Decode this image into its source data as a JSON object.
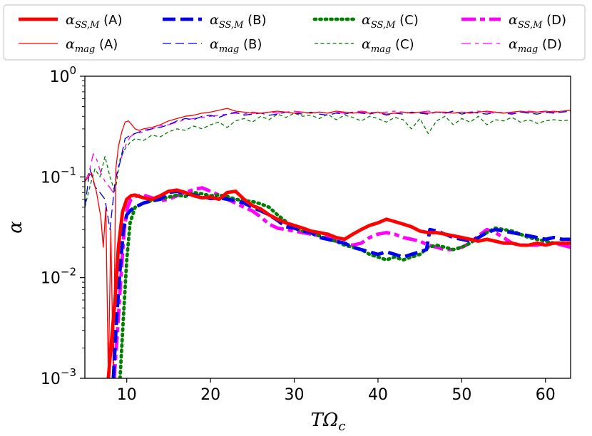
{
  "chart_data": {
    "type": "line",
    "title": "",
    "xlabel": "TΩ_c",
    "ylabel": "α",
    "xlim": [
      5,
      63
    ],
    "ylim": [
      0.001,
      1
    ],
    "yscale": "log",
    "xticks": [
      10,
      20,
      30,
      40,
      50,
      60
    ],
    "yticks": [
      {
        "value": 0.001,
        "base": "10",
        "exp": "−3"
      },
      {
        "value": 0.01,
        "base": "10",
        "exp": "−2"
      },
      {
        "value": 0.1,
        "base": "10",
        "exp": "−1"
      },
      {
        "value": 1,
        "base": "10",
        "exp": "0"
      }
    ],
    "legend": {
      "placement": "top",
      "columns": 4
    },
    "series": [
      {
        "name": "α_SS,M (A)",
        "sub": "SS,M",
        "tag": "(A)",
        "color": "#ff0000",
        "style": "solid",
        "weight": "thick",
        "x": [
          7.8,
          8.2,
          8.6,
          9.0,
          9.5,
          10.0,
          10.5,
          11,
          12,
          13,
          14,
          15,
          16,
          17,
          18,
          19,
          20,
          21,
          22,
          23,
          24,
          25,
          26,
          27,
          28,
          29,
          30,
          31,
          32,
          33,
          34,
          35,
          36,
          37,
          38,
          39,
          40,
          41,
          42,
          43,
          44,
          45,
          46,
          47,
          48,
          49,
          50,
          51,
          52,
          53,
          54,
          55,
          56,
          57,
          58,
          59,
          60,
          61,
          62,
          63
        ],
        "y": [
          0.001,
          0.0025,
          0.006,
          0.02,
          0.045,
          0.06,
          0.065,
          0.066,
          0.062,
          0.06,
          0.065,
          0.072,
          0.074,
          0.07,
          0.065,
          0.062,
          0.063,
          0.06,
          0.07,
          0.072,
          0.06,
          0.052,
          0.048,
          0.042,
          0.038,
          0.035,
          0.033,
          0.031,
          0.029,
          0.028,
          0.027,
          0.025,
          0.024,
          0.027,
          0.03,
          0.033,
          0.035,
          0.038,
          0.036,
          0.034,
          0.032,
          0.029,
          0.028,
          0.028,
          0.027,
          0.026,
          0.025,
          0.024,
          0.023,
          0.024,
          0.023,
          0.022,
          0.022,
          0.021,
          0.021,
          0.022,
          0.021,
          0.022,
          0.022,
          0.022
        ]
      },
      {
        "name": "α_SS,M (B)",
        "sub": "SS,M",
        "tag": "(B)",
        "color": "#0000ee",
        "style": "dashed",
        "weight": "thick",
        "x": [
          8.4,
          8.8,
          9.2,
          9.6,
          10.0,
          10.5,
          11,
          12,
          13,
          14,
          15,
          16,
          17,
          18,
          19,
          20,
          21,
          22,
          23,
          24,
          25,
          26,
          27,
          28,
          29,
          30,
          31,
          32,
          33,
          34,
          35,
          36,
          37,
          38,
          39,
          40,
          41,
          42,
          43,
          44,
          45,
          45.8,
          46.2,
          47,
          48,
          49,
          50,
          51,
          52,
          53,
          54,
          55,
          56,
          57,
          58,
          59,
          60,
          61,
          62,
          63
        ],
        "y": [
          0.001,
          0.004,
          0.012,
          0.03,
          0.042,
          0.047,
          0.05,
          0.055,
          0.058,
          0.06,
          0.07,
          0.072,
          0.068,
          0.066,
          0.064,
          0.061,
          0.062,
          0.06,
          0.058,
          0.055,
          0.05,
          0.046,
          0.042,
          0.037,
          0.032,
          0.031,
          0.029,
          0.028,
          0.025,
          0.024,
          0.023,
          0.022,
          0.02,
          0.019,
          0.018,
          0.017,
          0.018,
          0.017,
          0.016,
          0.017,
          0.018,
          0.019,
          0.03,
          0.029,
          0.027,
          0.025,
          0.024,
          0.023,
          0.025,
          0.028,
          0.03,
          0.029,
          0.028,
          0.027,
          0.026,
          0.025,
          0.024,
          0.025,
          0.024,
          0.024
        ]
      },
      {
        "name": "α_SS,M (C)",
        "sub": "SS,M",
        "tag": "(C)",
        "color": "#007f00",
        "style": "dotted",
        "weight": "thick",
        "x": [
          9.2,
          9.6,
          10.0,
          10.4,
          11,
          12,
          13,
          14,
          15,
          16,
          17,
          18,
          19,
          20,
          21,
          22,
          23,
          24,
          25,
          26,
          27,
          28,
          29,
          30,
          31,
          32,
          33,
          34,
          35,
          36,
          37,
          38,
          39,
          40,
          41,
          42,
          43,
          44,
          45,
          46,
          47,
          48,
          49,
          50,
          51,
          52,
          53,
          54,
          55,
          56,
          57,
          58,
          59,
          60,
          61,
          62,
          63
        ],
        "y": [
          0.001,
          0.004,
          0.015,
          0.035,
          0.05,
          0.055,
          0.058,
          0.06,
          0.063,
          0.066,
          0.064,
          0.07,
          0.068,
          0.065,
          0.066,
          0.064,
          0.06,
          0.058,
          0.057,
          0.054,
          0.05,
          0.042,
          0.036,
          0.031,
          0.029,
          0.028,
          0.026,
          0.024,
          0.023,
          0.021,
          0.02,
          0.019,
          0.017,
          0.016,
          0.015,
          0.016,
          0.015,
          0.016,
          0.017,
          0.02,
          0.021,
          0.02,
          0.019,
          0.02,
          0.022,
          0.025,
          0.028,
          0.031,
          0.03,
          0.029,
          0.027,
          0.025,
          0.024,
          0.023,
          0.022,
          0.022,
          0.022
        ]
      },
      {
        "name": "α_SS,M (D)",
        "sub": "SS,M",
        "tag": "(D)",
        "color": "#ff00ff",
        "style": "dashdot",
        "weight": "thick",
        "x": [
          8.5,
          8.9,
          9.3,
          9.7,
          10.1,
          10.5,
          11,
          12,
          13,
          14,
          15,
          16,
          17,
          18,
          19,
          20,
          21,
          22,
          23,
          24,
          25,
          26,
          27,
          28,
          29,
          30,
          31,
          32,
          33,
          34,
          35,
          36,
          37,
          38,
          39,
          40,
          41,
          42,
          43,
          44,
          45,
          46,
          47,
          48,
          49,
          50,
          51,
          52,
          53,
          54,
          55,
          56,
          57,
          58,
          59,
          60,
          61,
          62,
          63
        ],
        "y": [
          0.001,
          0.003,
          0.01,
          0.03,
          0.05,
          0.06,
          0.064,
          0.066,
          0.062,
          0.058,
          0.06,
          0.065,
          0.07,
          0.075,
          0.078,
          0.072,
          0.066,
          0.06,
          0.055,
          0.05,
          0.046,
          0.04,
          0.034,
          0.031,
          0.03,
          0.029,
          0.028,
          0.027,
          0.026,
          0.025,
          0.023,
          0.022,
          0.021,
          0.022,
          0.025,
          0.027,
          0.028,
          0.027,
          0.025,
          0.024,
          0.023,
          0.021,
          0.02,
          0.019,
          0.019,
          0.02,
          0.022,
          0.026,
          0.03,
          0.028,
          0.025,
          0.022,
          0.021,
          0.021,
          0.021,
          0.022,
          0.022,
          0.021,
          0.02
        ]
      },
      {
        "name": "α_mag (A)",
        "sub": "mag",
        "tag": "(A)",
        "color": "#ff0000",
        "style": "solid",
        "weight": "thin",
        "x": [
          5,
          5.8,
          6.4,
          6.9,
          7.2,
          7.5,
          7.8,
          8.1,
          8.4,
          8.7,
          9.0,
          9.4,
          9.8,
          10.2,
          10.6,
          11,
          11.5,
          12,
          13,
          14,
          15,
          16,
          17,
          18,
          19,
          20,
          21,
          22,
          23,
          24,
          25,
          26,
          27,
          28,
          29,
          30,
          31,
          32,
          33,
          34,
          35,
          36,
          37,
          38,
          39,
          40,
          41,
          42,
          43,
          44,
          45,
          46,
          47,
          48,
          49,
          50,
          51,
          52,
          53,
          54,
          55,
          56,
          57,
          58,
          59,
          60,
          61,
          62,
          63
        ],
        "y": [
          0.09,
          0.11,
          0.07,
          0.04,
          0.02,
          0.05,
          0.001,
          0.03,
          0.001,
          0.12,
          0.2,
          0.28,
          0.35,
          0.36,
          0.33,
          0.3,
          0.29,
          0.3,
          0.31,
          0.33,
          0.36,
          0.38,
          0.4,
          0.41,
          0.43,
          0.44,
          0.46,
          0.48,
          0.45,
          0.44,
          0.43,
          0.43,
          0.44,
          0.45,
          0.44,
          0.43,
          0.44,
          0.43,
          0.44,
          0.43,
          0.45,
          0.44,
          0.43,
          0.44,
          0.43,
          0.44,
          0.42,
          0.43,
          0.44,
          0.43,
          0.44,
          0.43,
          0.44,
          0.44,
          0.43,
          0.44,
          0.43,
          0.44,
          0.45,
          0.44,
          0.43,
          0.44,
          0.45,
          0.44,
          0.44,
          0.45,
          0.44,
          0.45,
          0.46
        ]
      },
      {
        "name": "α_mag (B)",
        "sub": "mag",
        "tag": "(B)",
        "color": "#0000ee",
        "style": "dashed",
        "weight": "thin",
        "x": [
          5,
          5.6,
          6.2,
          6.8,
          7.4,
          8.0,
          8.6,
          9.2,
          9.8,
          10.4,
          11,
          12,
          13,
          14,
          15,
          16,
          17,
          18,
          19,
          20,
          21,
          22,
          23,
          24,
          25,
          26,
          27,
          28,
          29,
          30,
          31,
          32,
          33,
          34,
          35,
          36,
          37,
          38,
          39,
          40,
          41,
          42,
          43,
          44,
          45,
          46,
          47,
          48,
          49,
          50,
          51,
          52,
          53,
          54,
          55,
          56,
          57,
          58,
          59,
          60,
          61,
          62,
          63
        ],
        "y": [
          0.05,
          0.12,
          0.08,
          0.07,
          0.06,
          0.03,
          0.09,
          0.14,
          0.24,
          0.26,
          0.27,
          0.29,
          0.3,
          0.31,
          0.33,
          0.36,
          0.38,
          0.37,
          0.4,
          0.41,
          0.39,
          0.42,
          0.44,
          0.41,
          0.42,
          0.43,
          0.41,
          0.42,
          0.44,
          0.43,
          0.42,
          0.44,
          0.42,
          0.41,
          0.43,
          0.42,
          0.44,
          0.43,
          0.42,
          0.44,
          0.41,
          0.43,
          0.42,
          0.44,
          0.43,
          0.42,
          0.44,
          0.43,
          0.45,
          0.42,
          0.44,
          0.43,
          0.42,
          0.44,
          0.43,
          0.42,
          0.44,
          0.43,
          0.42,
          0.44,
          0.43,
          0.44,
          0.45
        ]
      },
      {
        "name": "α_mag (C)",
        "sub": "mag",
        "tag": "(C)",
        "color": "#007f00",
        "style": "dashed-fine",
        "weight": "thin",
        "x": [
          5,
          5.6,
          6.2,
          6.8,
          7.4,
          8.0,
          8.6,
          9.2,
          9.8,
          10.4,
          11,
          12,
          13,
          14,
          15,
          16,
          17,
          18,
          19,
          20,
          21,
          22,
          23,
          24,
          25,
          26,
          27,
          28,
          29,
          30,
          31,
          32,
          33,
          34,
          35,
          36,
          37,
          38,
          39,
          40,
          41,
          42,
          43,
          44,
          45,
          46,
          47,
          48,
          49,
          50,
          51,
          52,
          53,
          54,
          55,
          56,
          57,
          58,
          59,
          60,
          61,
          62,
          63
        ],
        "y": [
          0.05,
          0.08,
          0.12,
          0.1,
          0.16,
          0.1,
          0.07,
          0.15,
          0.19,
          0.22,
          0.24,
          0.23,
          0.26,
          0.25,
          0.28,
          0.3,
          0.29,
          0.32,
          0.3,
          0.33,
          0.35,
          0.31,
          0.36,
          0.38,
          0.35,
          0.4,
          0.37,
          0.42,
          0.39,
          0.43,
          0.4,
          0.41,
          0.38,
          0.42,
          0.37,
          0.41,
          0.39,
          0.36,
          0.4,
          0.38,
          0.35,
          0.39,
          0.37,
          0.3,
          0.38,
          0.27,
          0.36,
          0.4,
          0.33,
          0.38,
          0.35,
          0.4,
          0.33,
          0.37,
          0.36,
          0.39,
          0.35,
          0.37,
          0.34,
          0.36,
          0.37,
          0.36,
          0.37
        ]
      },
      {
        "name": "α_mag (D)",
        "sub": "mag",
        "tag": "(D)",
        "color": "#ff00ff",
        "style": "dashdot",
        "weight": "thin",
        "x": [
          5,
          5.5,
          6.0,
          6.4,
          6.9,
          7.4,
          7.9,
          8.4,
          8.9,
          9.4,
          9.9,
          10.4,
          11,
          12,
          13,
          14,
          15,
          16,
          17,
          18,
          19,
          20,
          21,
          22,
          23,
          24,
          25,
          26,
          27,
          28,
          29,
          30,
          31,
          32,
          33,
          34,
          35,
          36,
          37,
          38,
          39,
          40,
          41,
          42,
          43,
          44,
          45,
          46,
          47,
          48,
          49,
          50,
          51,
          52,
          53,
          54,
          55,
          56,
          57,
          58,
          59,
          60,
          61,
          62,
          63
        ],
        "y": [
          0.09,
          0.11,
          0.17,
          0.15,
          0.11,
          0.09,
          0.08,
          0.07,
          0.12,
          0.16,
          0.21,
          0.25,
          0.27,
          0.28,
          0.3,
          0.32,
          0.33,
          0.35,
          0.37,
          0.38,
          0.39,
          0.4,
          0.41,
          0.42,
          0.43,
          0.42,
          0.44,
          0.43,
          0.44,
          0.43,
          0.44,
          0.45,
          0.44,
          0.43,
          0.44,
          0.43,
          0.44,
          0.43,
          0.44,
          0.45,
          0.44,
          0.43,
          0.44,
          0.45,
          0.44,
          0.43,
          0.44,
          0.45,
          0.44,
          0.43,
          0.44,
          0.43,
          0.44,
          0.45,
          0.44,
          0.43,
          0.44,
          0.43,
          0.44,
          0.45,
          0.44,
          0.44,
          0.45,
          0.44,
          0.45
        ]
      }
    ]
  }
}
